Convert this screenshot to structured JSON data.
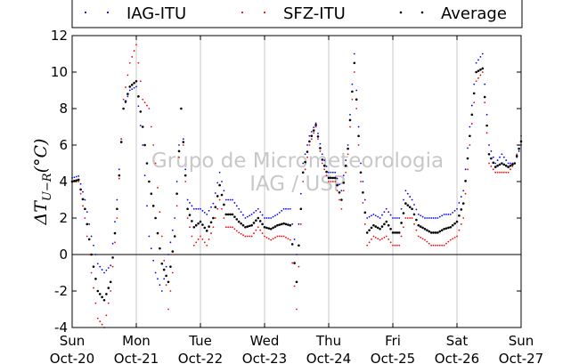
{
  "chart_data": {
    "type": "scatter",
    "title": "",
    "ylabel": "ΔT",
    "ylabel_subscript": "U−R",
    "ylabel_unit": "(°C)",
    "xlabel": "",
    "ylim": [
      -4,
      12
    ],
    "yticks": [
      -4,
      -2,
      0,
      2,
      4,
      6,
      8,
      10,
      12
    ],
    "xlim_days": [
      0,
      7
    ],
    "xticks": [
      {
        "day": "Sun",
        "date": "Oct-20"
      },
      {
        "day": "Mon",
        "date": "Oct-21"
      },
      {
        "day": "Tue",
        "date": "Oct-22"
      },
      {
        "day": "Wed",
        "date": "Oct-23"
      },
      {
        "day": "Thu",
        "date": "Oct-24"
      },
      {
        "day": "Fri",
        "date": "Oct-25"
      },
      {
        "day": "Sat",
        "date": "Oct-26"
      },
      {
        "day": "Sun",
        "date": "Oct-27"
      }
    ],
    "grid": "vertical",
    "reference_line": 0,
    "legend_position": "top (outside, above plot)",
    "watermark": [
      "Grupo de Micrometeorologia",
      "IAG / USP"
    ],
    "series": [
      {
        "name": "IAG-ITU",
        "color": "#0000ff",
        "x": [
          0,
          0.1,
          0.2,
          0.3,
          0.4,
          0.5,
          0.6,
          0.7,
          0.8,
          0.9,
          1.0,
          1.1,
          1.2,
          1.3,
          1.4,
          1.5,
          1.6,
          1.7,
          1.8,
          1.9,
          2.0,
          2.1,
          2.2,
          2.3,
          2.4,
          2.5,
          2.6,
          2.7,
          2.8,
          2.9,
          3.0,
          3.1,
          3.2,
          3.3,
          3.4,
          3.5,
          3.6,
          3.7,
          3.8,
          3.9,
          4.0,
          4.1,
          4.2,
          4.3,
          4.4,
          4.5,
          4.6,
          4.7,
          4.8,
          4.9,
          5.0,
          5.1,
          5.2,
          5.3,
          5.4,
          5.5,
          5.6,
          5.7,
          5.8,
          5.9,
          6.0,
          6.1,
          6.2,
          6.3,
          6.4,
          6.5,
          6.6,
          6.7,
          6.8,
          6.9,
          7.0
        ],
        "y": [
          4.2,
          4.3,
          3.0,
          1.0,
          -0.5,
          -1.0,
          -0.6,
          3.0,
          8.0,
          9.0,
          9.2,
          6.0,
          1.0,
          -1.0,
          -2.0,
          0.0,
          2.0,
          8.0,
          3.0,
          2.5,
          2.5,
          2.2,
          2.8,
          4.5,
          3.0,
          3.0,
          2.5,
          2.0,
          2.2,
          2.5,
          2.0,
          2.0,
          2.2,
          2.5,
          2.5,
          0.0,
          5.0,
          6.5,
          7.2,
          5.5,
          4.5,
          4.5,
          3.5,
          6.0,
          11.0,
          5.0,
          2.0,
          2.2,
          2.0,
          2.5,
          2.0,
          2.0,
          3.5,
          3.0,
          2.2,
          2.0,
          2.0,
          2.0,
          2.2,
          2.2,
          2.5,
          3.5,
          7.0,
          10.5,
          11.0,
          6.0,
          5.0,
          5.5,
          5.0,
          5.0,
          6.0
        ]
      },
      {
        "name": "SFZ-ITU",
        "color": "#ff0000",
        "x": [
          0,
          0.1,
          0.2,
          0.3,
          0.4,
          0.5,
          0.6,
          0.7,
          0.8,
          0.9,
          1.0,
          1.1,
          1.2,
          1.3,
          1.4,
          1.5,
          1.6,
          1.7,
          1.8,
          1.9,
          2.0,
          2.1,
          2.2,
          2.3,
          2.4,
          2.5,
          2.6,
          2.7,
          2.8,
          2.9,
          3.0,
          3.1,
          3.2,
          3.3,
          3.4,
          3.5,
          3.6,
          3.7,
          3.8,
          3.9,
          4.0,
          4.1,
          4.2,
          4.3,
          4.4,
          4.5,
          4.6,
          4.7,
          4.8,
          4.9,
          5.0,
          5.1,
          5.2,
          5.3,
          5.4,
          5.5,
          5.6,
          5.7,
          5.8,
          5.9,
          6.0,
          6.1,
          6.2,
          6.3,
          6.4,
          6.5,
          6.6,
          6.7,
          6.8,
          6.9,
          7.0
        ],
        "y": [
          4.0,
          4.0,
          2.0,
          -1.0,
          -3.5,
          -4.0,
          -2.0,
          2.0,
          8.5,
          10.5,
          11.5,
          8.5,
          8.0,
          5.0,
          1.0,
          -3.0,
          0.0,
          8.0,
          2.0,
          0.5,
          1.0,
          0.5,
          1.5,
          3.0,
          1.5,
          1.5,
          1.2,
          1.0,
          1.0,
          1.5,
          1.0,
          0.8,
          1.0,
          1.0,
          0.8,
          -3.0,
          4.0,
          6.0,
          7.0,
          5.0,
          4.0,
          4.0,
          2.5,
          5.5,
          10.0,
          4.0,
          0.5,
          1.0,
          0.8,
          1.0,
          0.5,
          0.5,
          2.0,
          2.0,
          1.0,
          0.8,
          0.5,
          0.5,
          0.5,
          0.8,
          1.0,
          2.0,
          6.0,
          9.5,
          10.0,
          5.0,
          4.5,
          4.5,
          4.5,
          5.0,
          6.5
        ]
      },
      {
        "name": "Average",
        "color": "#000000",
        "x": [
          0,
          0.1,
          0.2,
          0.3,
          0.4,
          0.5,
          0.6,
          0.7,
          0.8,
          0.9,
          1.0,
          1.1,
          1.2,
          1.3,
          1.4,
          1.5,
          1.6,
          1.7,
          1.8,
          1.9,
          2.0,
          2.1,
          2.2,
          2.3,
          2.4,
          2.5,
          2.6,
          2.7,
          2.8,
          2.9,
          3.0,
          3.1,
          3.2,
          3.3,
          3.4,
          3.5,
          3.6,
          3.7,
          3.8,
          3.9,
          4.0,
          4.1,
          4.2,
          4.3,
          4.4,
          4.5,
          4.6,
          4.7,
          4.8,
          4.9,
          5.0,
          5.1,
          5.2,
          5.3,
          5.4,
          5.5,
          5.6,
          5.7,
          5.8,
          5.9,
          6.0,
          6.1,
          6.2,
          6.3,
          6.4,
          6.5,
          6.6,
          6.7,
          6.8,
          6.9,
          7.0
        ],
        "y": [
          4.0,
          4.1,
          2.5,
          0.0,
          -2.0,
          -2.5,
          -1.5,
          2.5,
          8.0,
          9.2,
          9.5,
          7.0,
          4.0,
          2.0,
          -0.5,
          -1.5,
          1.0,
          8.0,
          2.5,
          1.5,
          1.8,
          1.3,
          2.0,
          3.8,
          2.2,
          2.2,
          1.8,
          1.5,
          1.6,
          2.0,
          1.5,
          1.4,
          1.6,
          1.7,
          1.6,
          -1.5,
          4.5,
          6.2,
          7.1,
          5.2,
          4.2,
          4.2,
          3.0,
          5.8,
          10.5,
          4.5,
          1.2,
          1.6,
          1.4,
          1.8,
          1.2,
          1.2,
          2.8,
          2.5,
          1.6,
          1.4,
          1.2,
          1.2,
          1.4,
          1.5,
          1.8,
          2.8,
          6.5,
          10.0,
          10.2,
          5.5,
          4.8,
          5.0,
          4.8,
          5.0,
          6.2
        ]
      }
    ]
  }
}
